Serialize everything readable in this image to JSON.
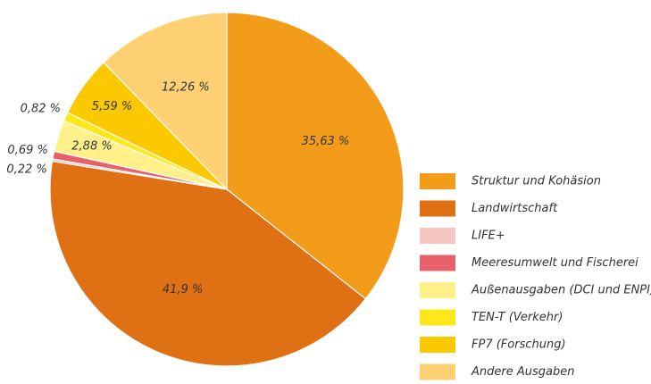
{
  "chart_data": {
    "type": "pie",
    "categories": [
      "Struktur und Kohäsion",
      "Landwirtschaft",
      "LIFE+",
      "Meeresumwelt und Fischerei",
      "Außenausgaben (DCI und ENPI)",
      "TEN-T (Verkehr)",
      "FP7 (Forschung)",
      "Andere Ausgaben"
    ],
    "values": [
      35.63,
      41.9,
      0.22,
      0.69,
      2.88,
      0.82,
      5.59,
      12.26
    ],
    "value_labels": [
      "35,63 %",
      "41,9 %",
      "0,22 %",
      "0,69 %",
      "2,88 %",
      "0,82 %",
      "5,59 %",
      "12,26 %"
    ],
    "colors": [
      "#f39c1a",
      "#e07014",
      "#f7c6c0",
      "#e8606a",
      "#fff08a",
      "#ffe81a",
      "#fcc800",
      "#fdd074"
    ],
    "legend": "right"
  }
}
